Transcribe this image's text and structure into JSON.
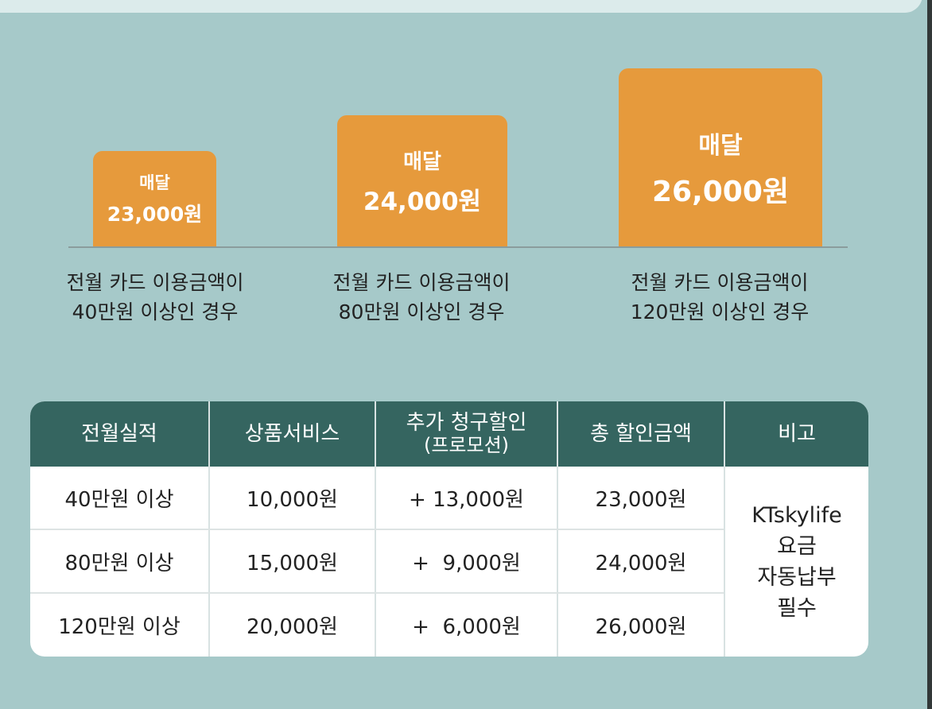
{
  "tiers": [
    {
      "label": "매달",
      "amount": "23,000원",
      "condition_line1": "전월 카드 이용금액이",
      "condition_line2": "40만원 이상인 경우"
    },
    {
      "label": "매달",
      "amount": "24,000원",
      "condition_line1": "전월 카드 이용금액이",
      "condition_line2": "80만원 이상인 경우"
    },
    {
      "label": "매달",
      "amount": "26,000원",
      "condition_line1": "전월 카드 이용금액이",
      "condition_line2": "120만원 이상인 경우"
    }
  ],
  "table": {
    "headers": [
      {
        "line1": "전월실적",
        "line2": ""
      },
      {
        "line1": "상품서비스",
        "line2": ""
      },
      {
        "line1": "추가 청구할인",
        "line2": "(프로모션)"
      },
      {
        "line1": "총 할인금액",
        "line2": ""
      },
      {
        "line1": "비고",
        "line2": ""
      }
    ],
    "rows": [
      [
        "40만원 이상",
        "10,000원",
        "+ 13,000원",
        "23,000원"
      ],
      [
        "80만원 이상",
        "15,000원",
        "+  9,000원",
        "24,000원"
      ],
      [
        "120만원 이상",
        "20,000원",
        "+  6,000원",
        "26,000원"
      ]
    ],
    "note_lines": [
      "KTskylife",
      "요금",
      "자동납부",
      "필수"
    ]
  },
  "colors": {
    "background": "#a6c9c9",
    "bar": "#e69a3c",
    "table_header": "#356560",
    "table_body": "#ffffff"
  }
}
